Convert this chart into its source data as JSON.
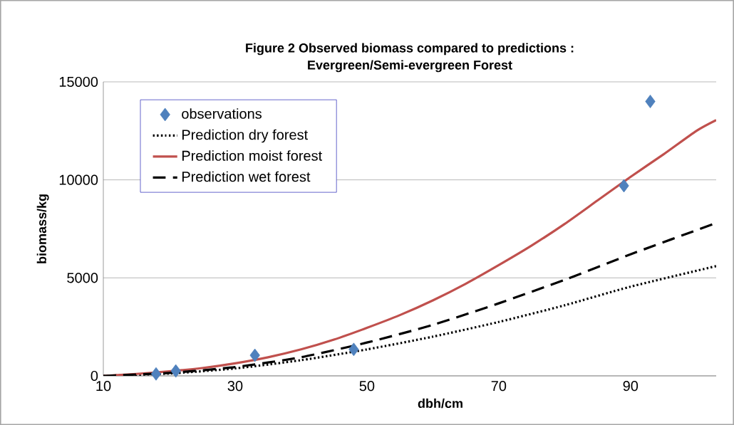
{
  "chart_data": {
    "type": "line",
    "title": "Figure 2  Observed biomass compared to predictions :\nEvergreen/Semi-evergreen Forest",
    "xlabel": "dbh/cm",
    "ylabel": "biomass/kg",
    "xlim": [
      10,
      103
    ],
    "ylim": [
      0,
      15000
    ],
    "xticks": [
      10,
      30,
      50,
      70,
      90
    ],
    "yticks": [
      0,
      5000,
      10000,
      15000
    ],
    "grid": "y",
    "legend": "top left",
    "series": [
      {
        "name": "observations",
        "type": "scatter",
        "marker": "diamond",
        "color": "#4f81bd",
        "x": [
          18,
          21,
          33,
          48,
          89,
          93
        ],
        "values": [
          100,
          250,
          1050,
          1350,
          9700,
          14000
        ]
      },
      {
        "name": "Prediction dry forest",
        "line_style": "dotted",
        "color": "#000000",
        "x": [
          10,
          20,
          30,
          40,
          50,
          60,
          70,
          80,
          90,
          103
        ],
        "values": [
          0,
          120,
          380,
          800,
          1350,
          2000,
          2750,
          3600,
          4550,
          5600
        ]
      },
      {
        "name": "Prediction moist forest",
        "line_style": "solid",
        "color": "#c0504d",
        "x": [
          10,
          15,
          20,
          25,
          30,
          35,
          40,
          45,
          50,
          55,
          60,
          65,
          70,
          75,
          80,
          85,
          90,
          95,
          100,
          103
        ],
        "values": [
          0,
          100,
          230,
          400,
          640,
          950,
          1350,
          1850,
          2450,
          3100,
          3850,
          4700,
          5650,
          6650,
          7750,
          8950,
          10150,
          11300,
          12500,
          13050
        ]
      },
      {
        "name": "Prediction wet forest",
        "line_style": "dashed",
        "color": "#000000",
        "x": [
          10,
          20,
          30,
          40,
          50,
          60,
          70,
          80,
          90,
          103
        ],
        "values": [
          0,
          150,
          450,
          950,
          1700,
          2600,
          3700,
          4900,
          6200,
          7800
        ]
      }
    ]
  }
}
